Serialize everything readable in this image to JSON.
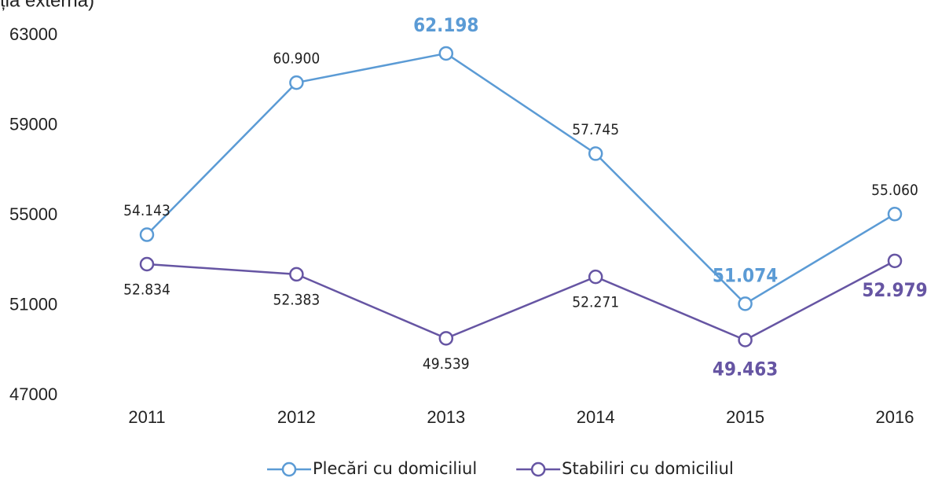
{
  "chart_data": {
    "type": "line",
    "title": "migrația externă)",
    "categories": [
      "2011",
      "2012",
      "2013",
      "2014",
      "2015",
      "2016"
    ],
    "series": [
      {
        "name": "Plecări cu domiciliul",
        "color": "#5b9bd5",
        "values": [
          54143,
          60900,
          62198,
          57745,
          51074,
          55060
        ],
        "value_labels": [
          "54.143",
          "60.900",
          "62.198",
          "57.745",
          "51.074",
          "55.060"
        ],
        "label_position": "above",
        "emphasized": [
          2,
          4
        ]
      },
      {
        "name": "Stabiliri cu domiciliul",
        "color": "#6655a3",
        "values": [
          52834,
          52383,
          49539,
          52271,
          49463,
          52979
        ],
        "value_labels": [
          "52.834",
          "52.383",
          "49.539",
          "52.271",
          "49.463",
          "52.979"
        ],
        "label_position": "below",
        "emphasized": [
          4,
          5
        ]
      }
    ],
    "ylim": [
      47000,
      63000
    ],
    "yticks": [
      47000,
      51000,
      55000,
      59000,
      63000
    ],
    "grid": false,
    "legend": "bottom"
  }
}
